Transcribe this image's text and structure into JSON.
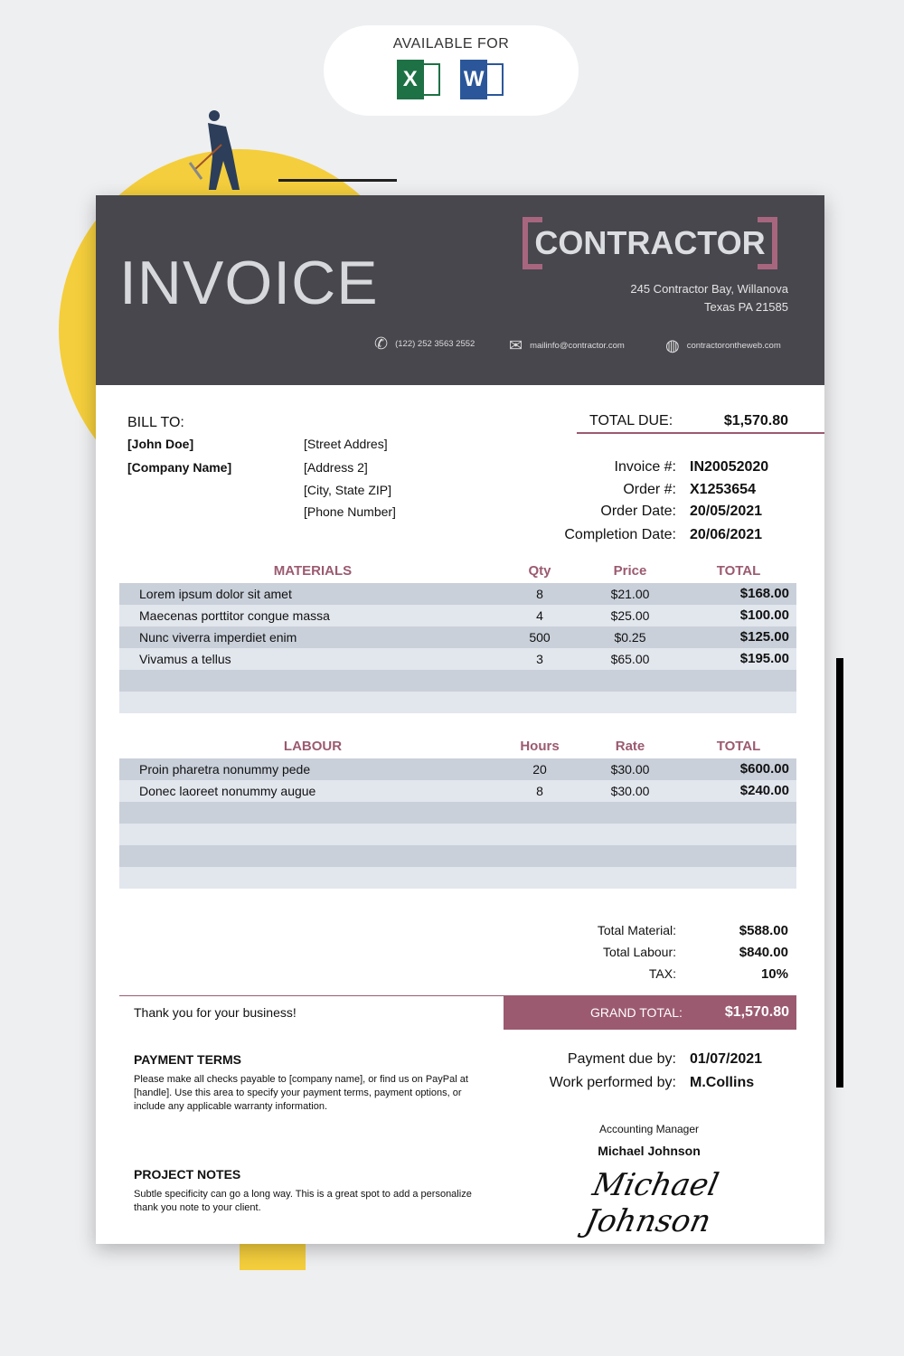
{
  "banner": {
    "available_for": "AVAILABLE FOR",
    "apps": [
      {
        "letter": "X",
        "name": "excel",
        "color": "#1e7145"
      },
      {
        "letter": "W",
        "name": "word",
        "color": "#2b579a"
      }
    ]
  },
  "colors": {
    "header": "#47474d",
    "accent": "#9b5a70",
    "yellow": "#f4ce3c"
  },
  "header": {
    "title": "INVOICE",
    "brand": "CONTRACTOR",
    "address1": "245 Contractor Bay, Willanova",
    "address2": "Texas PA 21585",
    "phone": "(122) 252 3563 2552",
    "email": "mailinfo@contractor.com",
    "web": "contractorontheweb.com"
  },
  "bill": {
    "label": "BILL TO:",
    "name": "[John Doe]",
    "company": "[Company Name]",
    "street": "[Street Addres]",
    "address2": "[Address 2]",
    "city": "[City, State ZIP]",
    "phone": "[Phone Number]"
  },
  "total_due": {
    "label": "TOTAL DUE:",
    "value": "$1,570.80"
  },
  "meta": [
    {
      "label": "Invoice #:",
      "value": "IN20052020"
    },
    {
      "label": "Order #:",
      "value": "X1253654"
    },
    {
      "label": "Order Date:",
      "value": "20/05/2021"
    },
    {
      "label": "Completion Date:",
      "value": "20/06/2021"
    }
  ],
  "materials": {
    "headers": [
      "MATERIALS",
      "Qty",
      "Price",
      "TOTAL"
    ],
    "rows": [
      [
        "Lorem ipsum dolor sit amet",
        "8",
        "$21.00",
        "$168.00"
      ],
      [
        "Maecenas porttitor congue massa",
        "4",
        "$25.00",
        "$100.00"
      ],
      [
        "Nunc viverra imperdiet enim",
        "500",
        "$0.25",
        "$125.00"
      ],
      [
        "Vivamus a tellus",
        "3",
        "$65.00",
        "$195.00"
      ]
    ]
  },
  "labour": {
    "headers": [
      "LABOUR",
      "Hours",
      "Rate",
      "TOTAL"
    ],
    "rows": [
      [
        "Proin pharetra nonummy pede",
        "20",
        "$30.00",
        "$600.00"
      ],
      [
        "Donec laoreet nonummy augue",
        "8",
        "$30.00",
        "$240.00"
      ]
    ]
  },
  "summary": [
    {
      "label": "Total Material:",
      "value": "$588.00"
    },
    {
      "label": "Total Labour:",
      "value": "$840.00"
    },
    {
      "label": "TAX:",
      "value": "10%"
    }
  ],
  "thanks": "Thank you for your business!",
  "grand_total": {
    "label": "GRAND TOTAL:",
    "value": "$1,570.80"
  },
  "payment_terms": {
    "title": "PAYMENT TERMS",
    "text": "Please make all checks payable to [company name], or find us on PayPal at [handle]. Use this area to specify your payment terms, payment options, or include any applicable warranty information."
  },
  "project_notes": {
    "title": "PROJECT NOTES",
    "text": "Subtle specificity can go a long way. This is a great spot  to add a personalize thank you note to your client."
  },
  "payment": [
    {
      "label": "Payment due by:",
      "value": "01/07/2021"
    },
    {
      "label": "Work performed by:",
      "value": "M.Collins"
    }
  ],
  "signer": {
    "role": "Accounting Manager",
    "name": "Michael Johnson",
    "signature": "Michael Johnson"
  }
}
